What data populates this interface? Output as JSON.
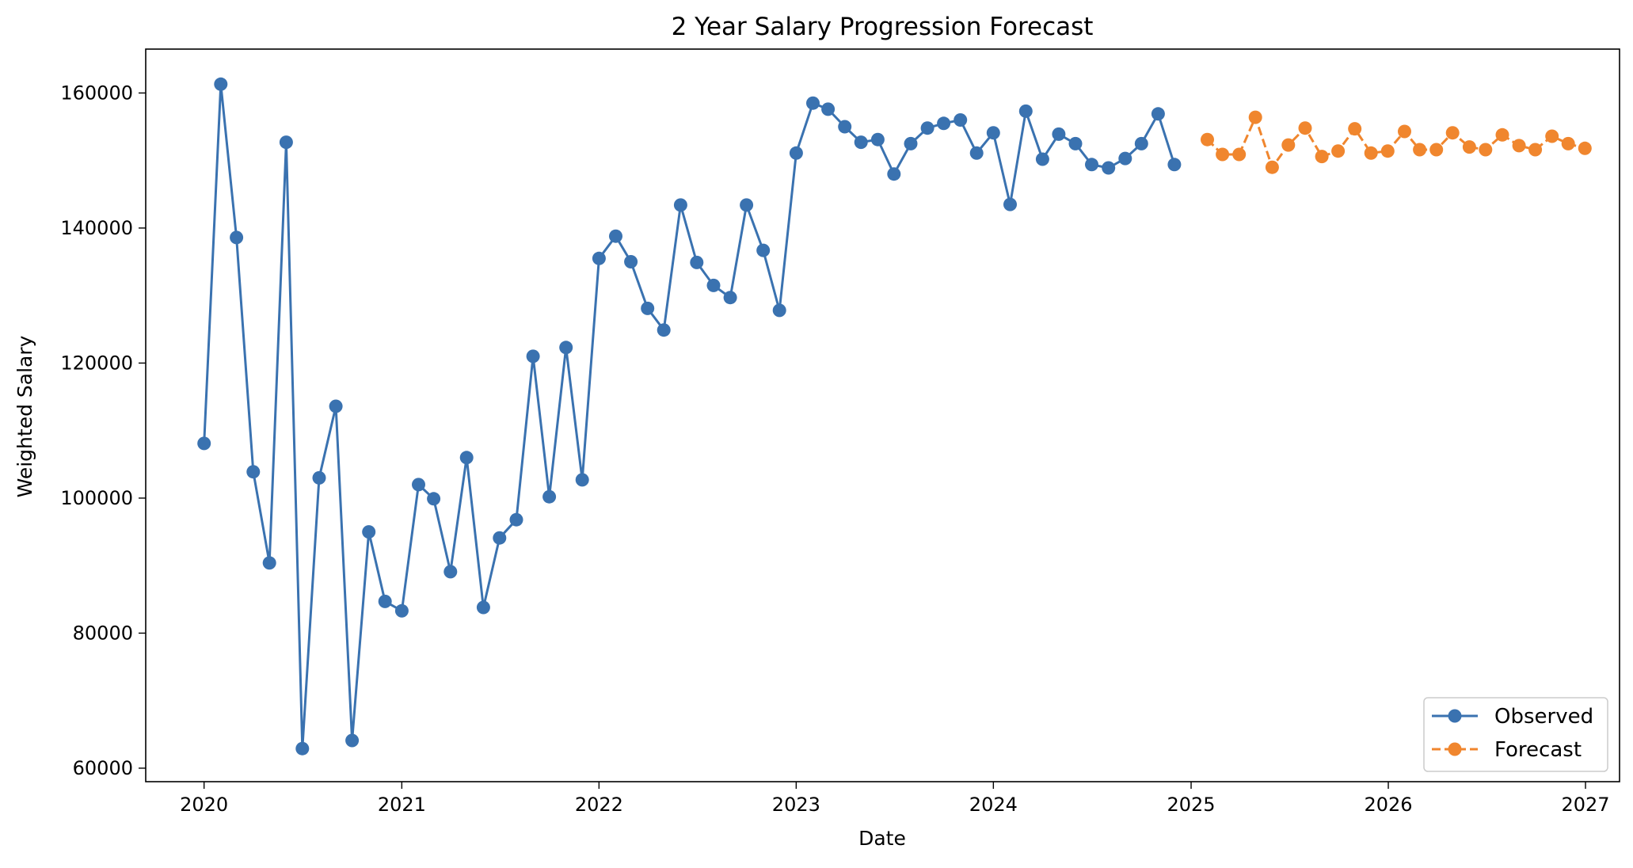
{
  "chart_data": {
    "type": "line",
    "title": "2 Year Salary Progression Forecast",
    "xlabel": "Date",
    "ylabel": "Weighted Salary",
    "xlim": [
      "2019-09-15",
      "2027-03-05"
    ],
    "ylim": [
      58000,
      166500
    ],
    "x_ticks": [
      "2020",
      "2021",
      "2022",
      "2023",
      "2024",
      "2025",
      "2026",
      "2027"
    ],
    "y_ticks": [
      "60000",
      "80000",
      "100000",
      "120000",
      "140000",
      "160000"
    ],
    "grid": false,
    "legend_position": "lower-right",
    "series": [
      {
        "name": "Observed",
        "color": "#3a72b0",
        "linestyle": "solid",
        "marker": "circle",
        "points": [
          [
            "2020-01-01",
            108100
          ],
          [
            "2020-02-01",
            161300
          ],
          [
            "2020-03-01",
            138600
          ],
          [
            "2020-04-01",
            103900
          ],
          [
            "2020-05-01",
            90400
          ],
          [
            "2020-06-01",
            152700
          ],
          [
            "2020-07-01",
            62900
          ],
          [
            "2020-08-01",
            103000
          ],
          [
            "2020-09-01",
            113600
          ],
          [
            "2020-10-01",
            64100
          ],
          [
            "2020-11-01",
            95000
          ],
          [
            "2020-12-01",
            84700
          ],
          [
            "2021-01-01",
            83300
          ],
          [
            "2021-02-01",
            102000
          ],
          [
            "2021-03-01",
            99900
          ],
          [
            "2021-04-01",
            89100
          ],
          [
            "2021-05-01",
            106000
          ],
          [
            "2021-06-01",
            83800
          ],
          [
            "2021-07-01",
            94100
          ],
          [
            "2021-08-01",
            96800
          ],
          [
            "2021-09-01",
            121000
          ],
          [
            "2021-10-01",
            100200
          ],
          [
            "2021-11-01",
            122300
          ],
          [
            "2021-12-01",
            102700
          ],
          [
            "2022-01-01",
            135500
          ],
          [
            "2022-02-01",
            138800
          ],
          [
            "2022-03-01",
            135000
          ],
          [
            "2022-04-01",
            128100
          ],
          [
            "2022-05-01",
            124900
          ],
          [
            "2022-06-01",
            143400
          ],
          [
            "2022-07-01",
            134900
          ],
          [
            "2022-08-01",
            131500
          ],
          [
            "2022-09-01",
            129700
          ],
          [
            "2022-10-01",
            143400
          ],
          [
            "2022-11-01",
            136700
          ],
          [
            "2022-12-01",
            127800
          ],
          [
            "2023-01-01",
            151100
          ],
          [
            "2023-02-01",
            158500
          ],
          [
            "2023-03-01",
            157600
          ],
          [
            "2023-04-01",
            155000
          ],
          [
            "2023-05-01",
            152700
          ],
          [
            "2023-06-01",
            153100
          ],
          [
            "2023-07-01",
            148000
          ],
          [
            "2023-08-01",
            152500
          ],
          [
            "2023-09-01",
            154800
          ],
          [
            "2023-10-01",
            155500
          ],
          [
            "2023-11-01",
            156000
          ],
          [
            "2023-12-01",
            151100
          ],
          [
            "2024-01-01",
            154100
          ],
          [
            "2024-02-01",
            143500
          ],
          [
            "2024-03-01",
            157300
          ],
          [
            "2024-04-01",
            150200
          ],
          [
            "2024-05-01",
            153900
          ],
          [
            "2024-06-01",
            152500
          ],
          [
            "2024-07-01",
            149400
          ],
          [
            "2024-08-01",
            148900
          ],
          [
            "2024-09-01",
            150300
          ],
          [
            "2024-10-01",
            152500
          ],
          [
            "2024-11-01",
            156900
          ],
          [
            "2024-12-01",
            149400
          ]
        ]
      },
      {
        "name": "Forecast",
        "color": "#f0862e",
        "linestyle": "dashed",
        "marker": "circle",
        "points": [
          [
            "2025-01-31",
            153100
          ],
          [
            "2025-02-28",
            150900
          ],
          [
            "2025-03-31",
            150900
          ],
          [
            "2025-04-30",
            156400
          ],
          [
            "2025-05-31",
            149000
          ],
          [
            "2025-06-30",
            152300
          ],
          [
            "2025-07-31",
            154800
          ],
          [
            "2025-08-31",
            150600
          ],
          [
            "2025-09-30",
            151400
          ],
          [
            "2025-10-31",
            154700
          ],
          [
            "2025-11-30",
            151100
          ],
          [
            "2025-12-31",
            151400
          ],
          [
            "2026-01-31",
            154300
          ],
          [
            "2026-02-28",
            151600
          ],
          [
            "2026-03-31",
            151600
          ],
          [
            "2026-04-30",
            154100
          ],
          [
            "2026-05-31",
            152000
          ],
          [
            "2026-06-30",
            151600
          ],
          [
            "2026-07-31",
            153800
          ],
          [
            "2026-08-31",
            152200
          ],
          [
            "2026-09-30",
            151600
          ],
          [
            "2026-10-31",
            153600
          ],
          [
            "2026-11-30",
            152500
          ],
          [
            "2026-12-31",
            151800
          ]
        ]
      }
    ]
  }
}
